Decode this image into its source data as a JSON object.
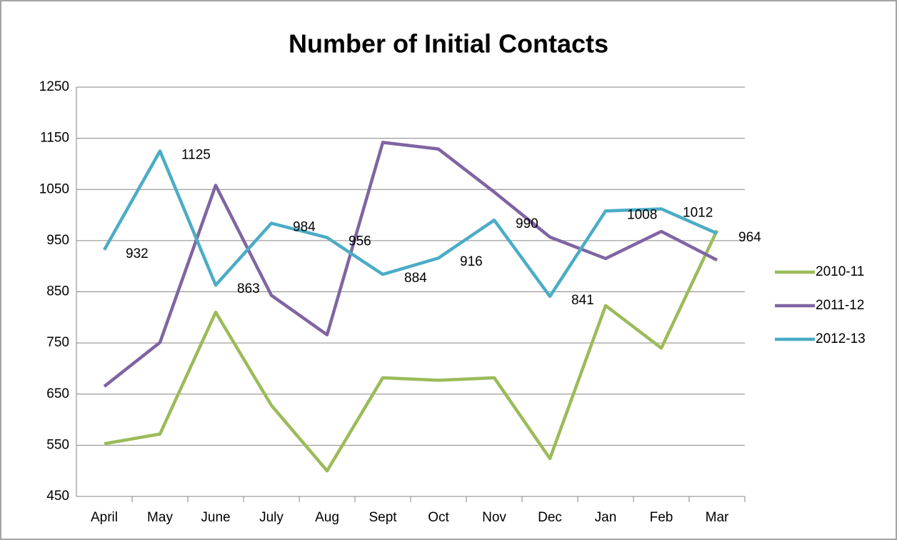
{
  "chart_data": {
    "type": "line",
    "title": "Number of Initial Contacts",
    "categories": [
      "April",
      "May",
      "June",
      "July",
      "Aug",
      "Sept",
      "Oct",
      "Nov",
      "Dec",
      "Jan",
      "Feb",
      "Mar"
    ],
    "series": [
      {
        "name": "2010-11",
        "color": "#9bbb59",
        "values": [
          553,
          572,
          810,
          628,
          500,
          682,
          677,
          682,
          524,
          823,
          740,
          970
        ]
      },
      {
        "name": "2011-12",
        "color": "#8064a2",
        "values": [
          665,
          751,
          1058,
          843,
          766,
          1142,
          1129,
          1045,
          957,
          915,
          968,
          912
        ]
      },
      {
        "name": "2012-13",
        "color": "#4bacc6",
        "values": [
          932,
          1125,
          863,
          984,
          956,
          884,
          916,
          990,
          841,
          1008,
          1012,
          964
        ],
        "data_labels": true
      }
    ],
    "ylim": [
      450,
      1250
    ],
    "yticks": [
      450,
      550,
      650,
      750,
      850,
      950,
      1050,
      1150,
      1250
    ],
    "grid": true,
    "legend": "right"
  }
}
